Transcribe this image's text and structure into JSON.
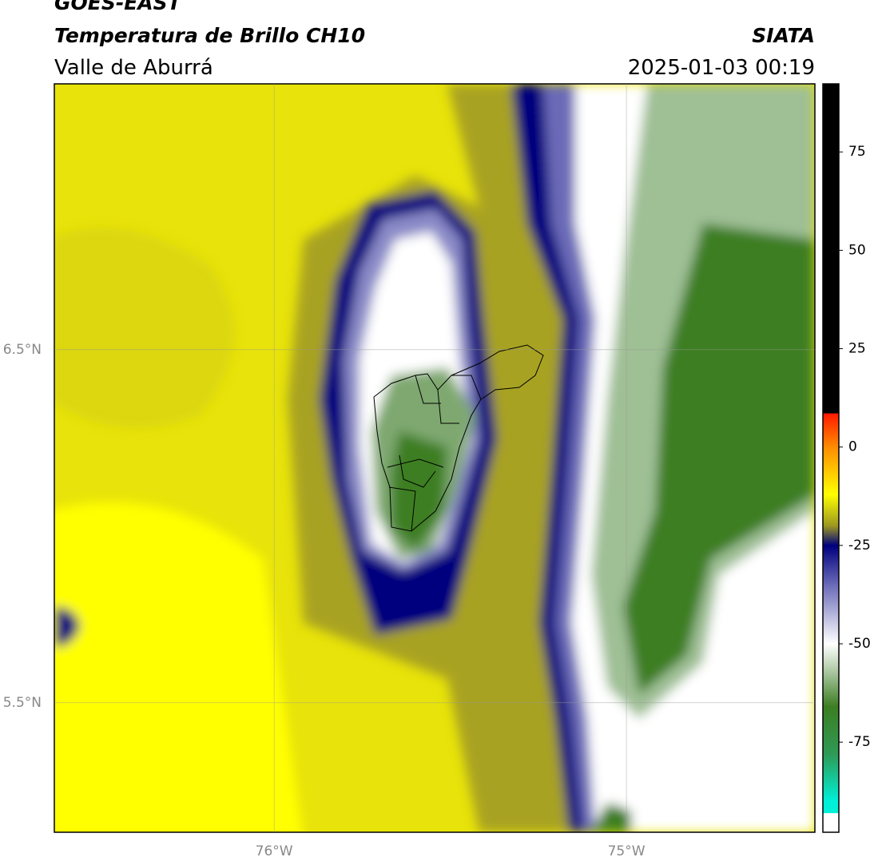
{
  "header": {
    "title": "GOES-EAST",
    "subtitle": "Temperatura de Brillo CH10",
    "region": "Valle de Aburrá",
    "source": "SIATA",
    "datetime": "2025-01-03 00:19"
  },
  "map": {
    "lon_range": [
      -76.624,
      -74.465
    ],
    "lat_range": [
      5.133,
      7.253
    ],
    "lon_ticks": [
      {
        "value": -76,
        "label": "76°W"
      },
      {
        "value": -75,
        "label": "75°W"
      }
    ],
    "lat_ticks": [
      {
        "value": 6.5,
        "label": "6.5°N"
      },
      {
        "value": 5.5,
        "label": "5.5°N"
      }
    ],
    "grid": true
  },
  "colorbar": {
    "lim": [
      -97.9,
      92.3
    ],
    "ticks": [
      75,
      50,
      25,
      0,
      -25,
      -50,
      -75
    ],
    "colormap": [
      {
        "value": 92.3,
        "color": "#000000"
      },
      {
        "value": 8.6,
        "color": "#000000"
      },
      {
        "value": 8.5,
        "color": "#ff1a00"
      },
      {
        "value": 0,
        "color": "#ff8c00"
      },
      {
        "value": -12,
        "color": "#ffff00"
      },
      {
        "value": -20,
        "color": "#9c9820"
      },
      {
        "value": -25,
        "color": "#00007e"
      },
      {
        "value": -35,
        "color": "#6a6ab8"
      },
      {
        "value": -50,
        "color": "#ffffff"
      },
      {
        "value": -56,
        "color": "#b8d0b0"
      },
      {
        "value": -66,
        "color": "#3c7e22"
      },
      {
        "value": -78,
        "color": "#2e9a55"
      },
      {
        "value": -90,
        "color": "#00f0d8"
      },
      {
        "value": -93,
        "color": "#00f0d8"
      },
      {
        "value": -93.1,
        "color": "#ffffff"
      },
      {
        "value": -97.9,
        "color": "#ffffff"
      }
    ]
  }
}
